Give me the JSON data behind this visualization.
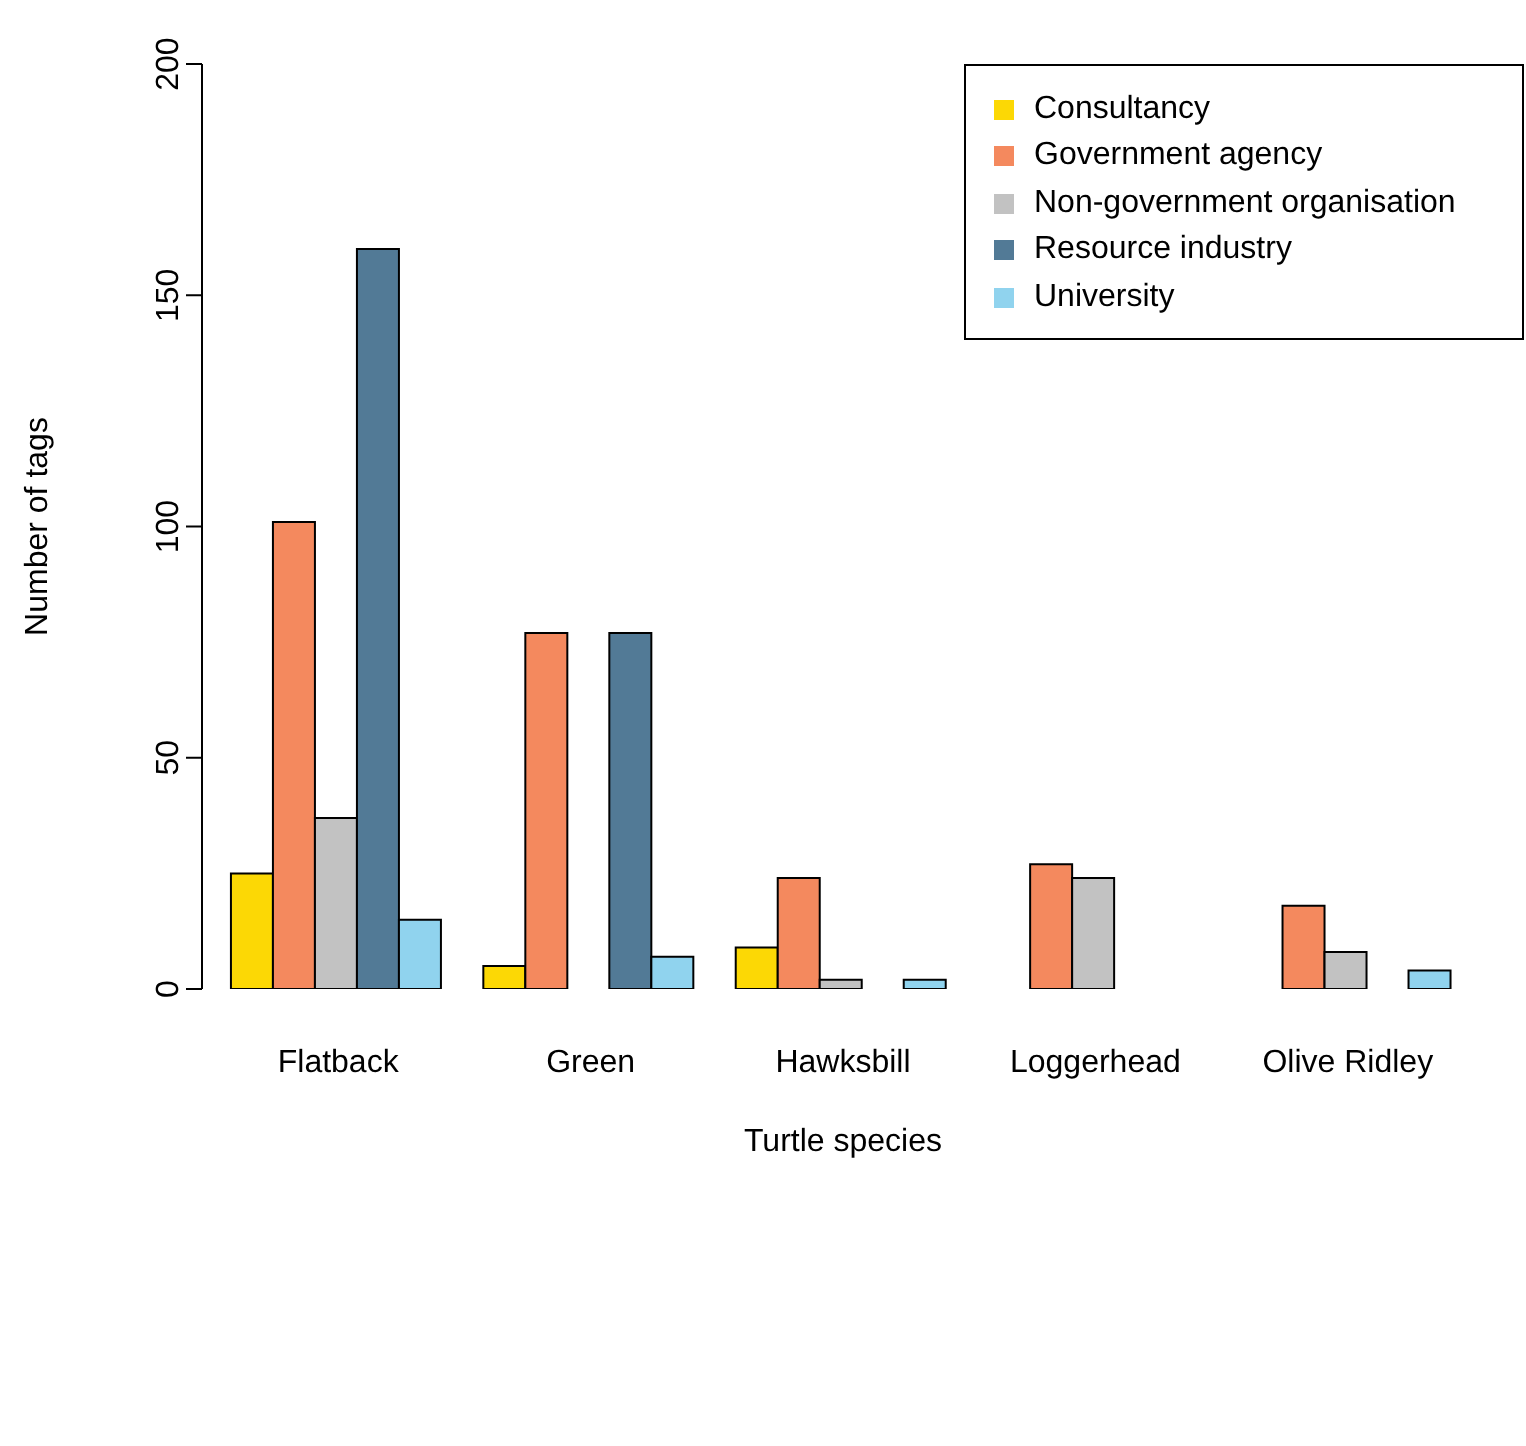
{
  "chart_data": {
    "type": "bar",
    "xlabel": "Turtle species",
    "ylabel": "Number of tags",
    "categories": [
      "Flatback",
      "Green",
      "Hawksbill",
      "Loggerhead",
      "Olive Ridley"
    ],
    "series": [
      {
        "name": "Consultancy",
        "color": "#fcd805",
        "values": [
          25,
          5,
          9,
          0,
          0
        ]
      },
      {
        "name": "Government agency",
        "color": "#f4895e",
        "values": [
          101,
          77,
          24,
          27,
          18
        ]
      },
      {
        "name": "Non-government organisation",
        "color": "#c2c2c2",
        "values": [
          37,
          0,
          2,
          24,
          8
        ]
      },
      {
        "name": "Resource industry",
        "color": "#527a96",
        "values": [
          160,
          77,
          0,
          0,
          0
        ]
      },
      {
        "name": "University",
        "color": "#90d3ee",
        "values": [
          15,
          7,
          2,
          0,
          4
        ]
      }
    ],
    "ylim": [
      0,
      200
    ],
    "yticks": [
      0,
      50,
      100,
      150,
      200
    ],
    "legend": "top right",
    "grid": false
  }
}
